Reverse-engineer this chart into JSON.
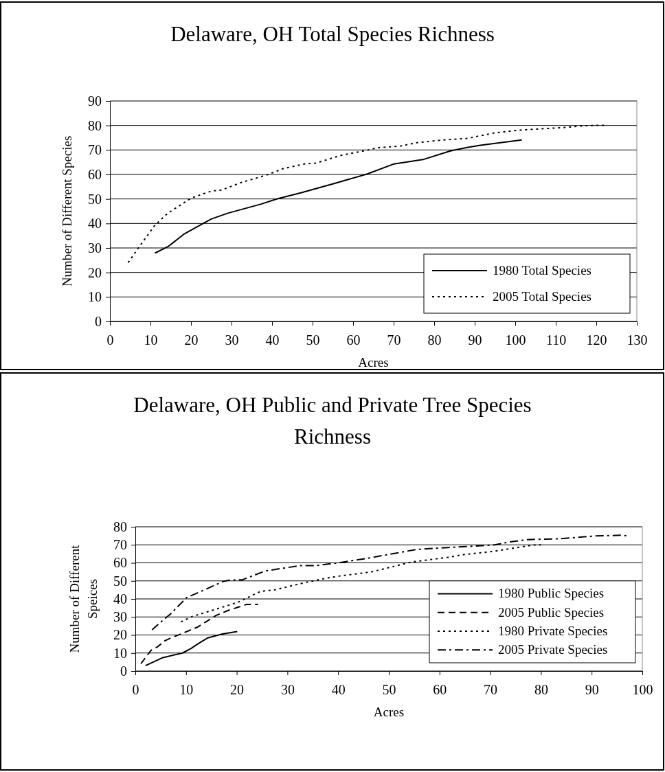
{
  "chart_data": [
    {
      "type": "line",
      "title": "Delaware, OH Total Species Richness",
      "xlabel": "Acres",
      "ylabel": "Number of Different Species",
      "xlim": [
        0,
        130
      ],
      "xticks": [
        0,
        10,
        20,
        30,
        40,
        50,
        60,
        70,
        80,
        90,
        100,
        110,
        120,
        130
      ],
      "ylim": [
        0,
        90
      ],
      "yticks": [
        0,
        10,
        20,
        30,
        40,
        50,
        60,
        70,
        80,
        90
      ],
      "grid": "y",
      "legend": "bottom right",
      "marker": "none",
      "series": [
        {
          "name": "1980 Total Species",
          "color": "#000000",
          "line_style": "solid",
          "x": [
            11.1,
            14.3,
            18.4,
            25,
            29.1,
            37.3,
            41.4,
            47.1,
            55.3,
            63.5,
            70.1,
            77.5,
            84,
            88.1,
            91.4,
            101.6
          ],
          "values": [
            27.9,
            30.5,
            35.8,
            41.8,
            44.2,
            47.9,
            50.1,
            52.5,
            56.3,
            60.2,
            64.3,
            66.2,
            69.6,
            71,
            71.9,
            74.1
          ]
        },
        {
          "name": "2005 Total Species",
          "color": "#000000",
          "line_style": "dotted",
          "x": [
            4.5,
            7.4,
            11.1,
            14.3,
            20.1,
            25,
            27.5,
            32.4,
            38.9,
            42.6,
            48,
            50.8,
            57,
            63.5,
            66,
            71.7,
            75.8,
            82.4,
            88.1,
            94.7,
            100.4,
            107,
            112.7,
            116.8,
            122.5
          ],
          "values": [
            24,
            30.9,
            39.3,
            44.2,
            50.4,
            53.2,
            53.6,
            56.7,
            59.9,
            62.3,
            64.3,
            64.6,
            67.8,
            69.9,
            70.9,
            71.6,
            73,
            74.1,
            74.7,
            76.9,
            78,
            78.7,
            79.2,
            79.9,
            80.1
          ]
        }
      ]
    },
    {
      "type": "line",
      "title": "Delaware, OH Public and Private Tree Species Richness",
      "xlabel": "Acres",
      "ylabel": "Number of Different Speices",
      "xlim": [
        0,
        100
      ],
      "xticks": [
        0,
        10,
        20,
        30,
        40,
        50,
        60,
        70,
        80,
        90,
        100
      ],
      "ylim": [
        0,
        80
      ],
      "yticks": [
        0,
        10,
        20,
        30,
        40,
        50,
        60,
        70,
        80
      ],
      "grid": "y",
      "legend": "bottom right",
      "marker": "none",
      "series": [
        {
          "name": "1980 Public Species",
          "color": "#000000",
          "line_style": "solid",
          "x": [
            2,
            5.3,
            9.3,
            11,
            12.3,
            14.3,
            17.2,
            20.1
          ],
          "values": [
            3,
            7.3,
            10,
            12.5,
            15,
            18.4,
            20.6,
            21.9
          ]
        },
        {
          "name": "2005 Public Species",
          "color": "#000000",
          "line_style": "dashed",
          "x": [
            1.1,
            3.1,
            4.4,
            5.9,
            7.5,
            9.7,
            12.3,
            14.1,
            15.9,
            18.5,
            22,
            24.2
          ],
          "values": [
            4.1,
            11.5,
            13.5,
            16.9,
            18.9,
            21.4,
            24.4,
            27.6,
            30.8,
            33.8,
            37,
            37
          ]
        },
        {
          "name": "1980 Private Species",
          "color": "#000000",
          "line_style": "dotted",
          "x": [
            9,
            11.3,
            15.9,
            20.3,
            24.7,
            27.3,
            33.5,
            37.9,
            40,
            46.6,
            54.5,
            61.5,
            64.6,
            70.7,
            78.6,
            80
          ],
          "values": [
            27.3,
            30.3,
            34.3,
            38.2,
            44.2,
            44.9,
            49.1,
            51.6,
            52.6,
            55,
            60.5,
            63,
            64.5,
            66.4,
            69.9,
            70
          ]
        },
        {
          "name": "2005 Private Species",
          "color": "#000000",
          "line_style": "dashdot",
          "x": [
            3.3,
            5.3,
            7,
            10.1,
            13.7,
            17.2,
            18.5,
            21.1,
            25.6,
            32.6,
            35.7,
            40,
            45.7,
            55.4,
            61.1,
            70.7,
            73.4,
            77.3,
            83.9,
            90.5,
            95.8,
            97
          ],
          "values": [
            22.9,
            27.8,
            31.8,
            40.7,
            45.1,
            49.6,
            50.4,
            50.6,
            55.5,
            58.5,
            58.5,
            60,
            62.5,
            67.4,
            68.4,
            69.9,
            71.4,
            72.9,
            73.4,
            74.9,
            75.3,
            75
          ]
        }
      ]
    }
  ]
}
